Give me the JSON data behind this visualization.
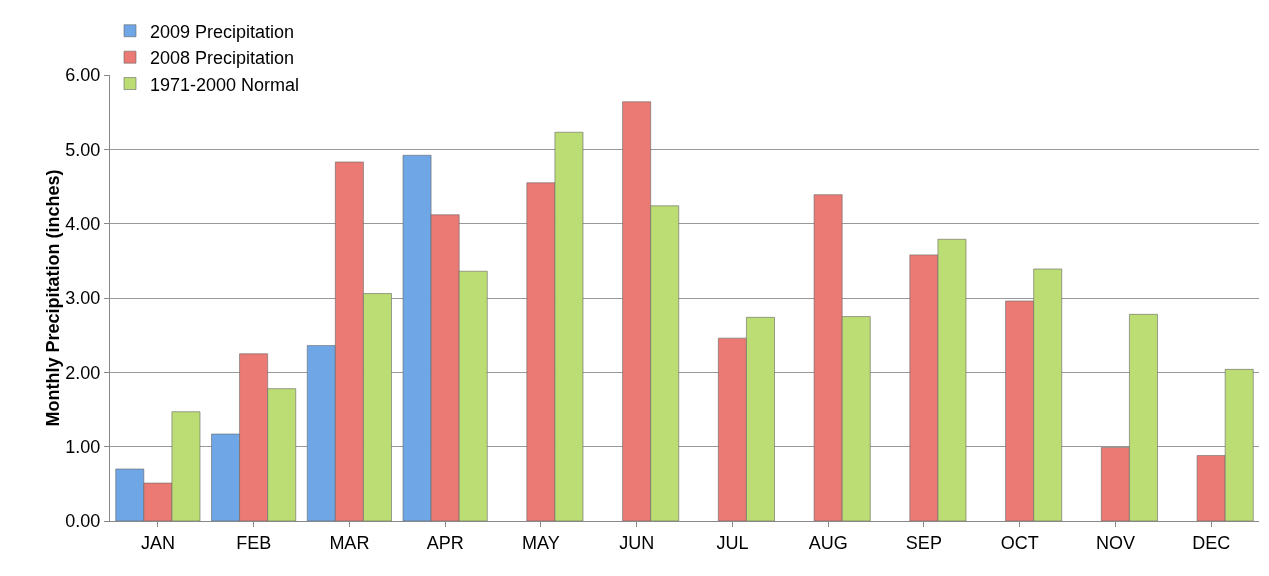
{
  "chart_data": {
    "type": "bar",
    "ylabel": "Monthly Precipitation (inches)",
    "categories": [
      "JAN",
      "FEB",
      "MAR",
      "APR",
      "MAY",
      "JUN",
      "JUL",
      "AUG",
      "SEP",
      "OCT",
      "NOV",
      "DEC"
    ],
    "series": [
      {
        "name": "2009 Precipitation",
        "color": "#6fa6e6",
        "values": [
          0.7,
          1.17,
          2.36,
          4.92,
          null,
          null,
          null,
          null,
          null,
          null,
          null,
          null
        ]
      },
      {
        "name": "2008 Precipitation",
        "color": "#ec7a74",
        "values": [
          0.51,
          2.25,
          4.83,
          4.12,
          4.55,
          5.64,
          2.46,
          4.39,
          3.58,
          2.96,
          0.99,
          0.88
        ]
      },
      {
        "name": "1971-2000 Normal",
        "color": "#bcdc74",
        "values": [
          1.47,
          1.78,
          3.06,
          3.36,
          5.23,
          4.24,
          2.74,
          2.75,
          3.79,
          3.39,
          2.78,
          2.04
        ]
      }
    ],
    "ylim": [
      0,
      6
    ],
    "yticks": [
      {
        "value": 0,
        "label": "0.00"
      },
      {
        "value": 1,
        "label": "1.00"
      },
      {
        "value": 2,
        "label": "2.00"
      },
      {
        "value": 3,
        "label": "3.00"
      },
      {
        "value": 4,
        "label": "4.00"
      },
      {
        "value": 5,
        "label": "5.00"
      },
      {
        "value": 6,
        "label": "6.00"
      }
    ],
    "grid": "y",
    "legend": "top left"
  }
}
